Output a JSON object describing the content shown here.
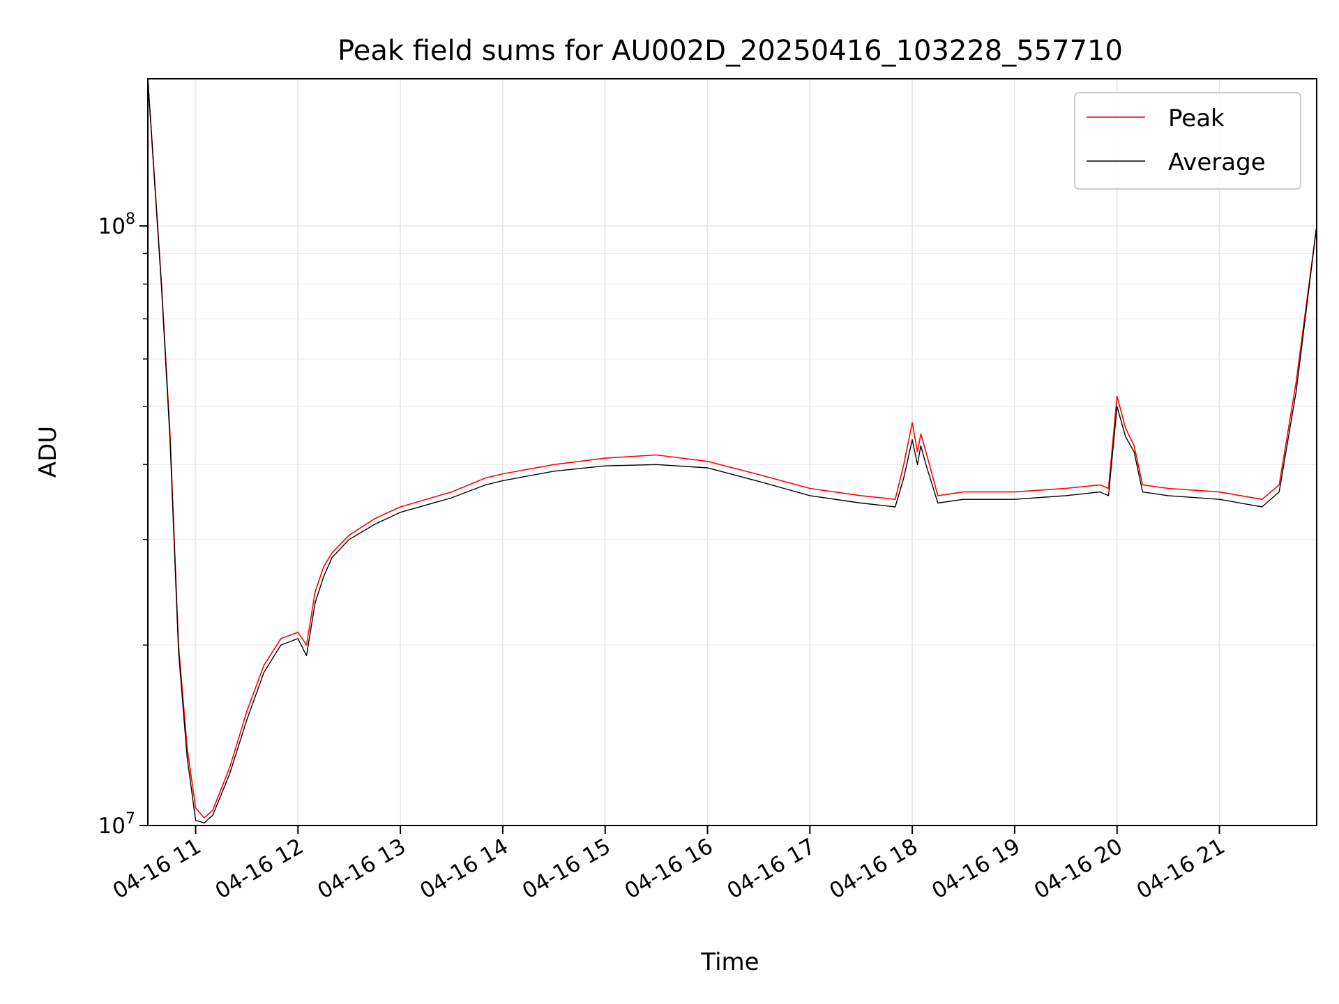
{
  "chart_data": {
    "type": "line",
    "title": "Peak field sums for AU002D_20250416_103228_557710",
    "xlabel": "Time",
    "ylabel": "ADU",
    "yscale": "log",
    "ylim": [
      10000000,
      176000000
    ],
    "xlim": [
      "2025-04-16 10:32",
      "2025-04-16 21:57"
    ],
    "x_ticks": [
      "2025-04-16 11:00",
      "2025-04-16 12:00",
      "2025-04-16 13:00",
      "2025-04-16 14:00",
      "2025-04-16 15:00",
      "2025-04-16 16:00",
      "2025-04-16 17:00",
      "2025-04-16 18:00",
      "2025-04-16 19:00",
      "2025-04-16 20:00",
      "2025-04-16 21:00"
    ],
    "x_tick_labels": [
      "04-16 11",
      "04-16 12",
      "04-16 13",
      "04-16 14",
      "04-16 15",
      "04-16 16",
      "04-16 17",
      "04-16 18",
      "04-16 19",
      "04-16 20",
      "04-16 21"
    ],
    "y_ticks": [
      10000000,
      100000000
    ],
    "y_tick_labels": [
      {
        "base": "10",
        "exp": "7"
      },
      {
        "base": "10",
        "exp": "8"
      }
    ],
    "grid": true,
    "legend_position": "top-right",
    "x": [
      "2025-04-16 10:32",
      "2025-04-16 10:40",
      "2025-04-16 10:45",
      "2025-04-16 10:50",
      "2025-04-16 10:55",
      "2025-04-16 11:00",
      "2025-04-16 11:05",
      "2025-04-16 11:10",
      "2025-04-16 11:20",
      "2025-04-16 11:30",
      "2025-04-16 11:40",
      "2025-04-16 11:50",
      "2025-04-16 12:00",
      "2025-04-16 12:05",
      "2025-04-16 12:10",
      "2025-04-16 12:15",
      "2025-04-16 12:20",
      "2025-04-16 12:30",
      "2025-04-16 12:45",
      "2025-04-16 13:00",
      "2025-04-16 13:30",
      "2025-04-16 13:50",
      "2025-04-16 14:00",
      "2025-04-16 14:30",
      "2025-04-16 15:00",
      "2025-04-16 15:30",
      "2025-04-16 16:00",
      "2025-04-16 16:30",
      "2025-04-16 17:00",
      "2025-04-16 17:30",
      "2025-04-16 17:50",
      "2025-04-16 17:55",
      "2025-04-16 18:00",
      "2025-04-16 18:03",
      "2025-04-16 18:05",
      "2025-04-16 18:08",
      "2025-04-16 18:15",
      "2025-04-16 18:30",
      "2025-04-16 19:00",
      "2025-04-16 19:30",
      "2025-04-16 19:50",
      "2025-04-16 19:55",
      "2025-04-16 20:00",
      "2025-04-16 20:05",
      "2025-04-16 20:10",
      "2025-04-16 20:15",
      "2025-04-16 20:30",
      "2025-04-16 21:00",
      "2025-04-16 21:25",
      "2025-04-16 21:35",
      "2025-04-16 21:45",
      "2025-04-16 21:57"
    ],
    "series": [
      {
        "name": "Peak",
        "color": "#ff0000",
        "values": [
          176000000,
          80000000,
          45000000,
          20000000,
          13500000,
          10700000,
          10300000,
          10600000,
          12500000,
          15500000,
          18500000,
          20500000,
          21000000,
          20000000,
          24500000,
          27000000,
          28500000,
          30500000,
          32500000,
          34000000,
          36000000,
          38000000,
          38600000,
          40000000,
          41000000,
          41500000,
          40500000,
          38500000,
          36500000,
          35500000,
          35000000,
          40000000,
          47000000,
          42000000,
          45000000,
          42000000,
          35500000,
          36000000,
          36000000,
          36500000,
          37000000,
          36500000,
          52000000,
          46000000,
          43000000,
          37000000,
          36500000,
          36000000,
          35000000,
          37000000,
          55000000,
          100000000
        ]
      },
      {
        "name": "Average",
        "color": "#000000",
        "values": [
          176000000,
          79000000,
          44000000,
          19500000,
          13000000,
          10200000,
          10100000,
          10400000,
          12200000,
          15000000,
          18000000,
          20000000,
          20500000,
          19200000,
          23500000,
          26000000,
          28000000,
          30000000,
          31800000,
          33300000,
          35200000,
          37000000,
          37600000,
          39000000,
          39800000,
          40000000,
          39500000,
          37500000,
          35500000,
          34500000,
          34000000,
          38000000,
          44000000,
          40000000,
          43000000,
          40000000,
          34500000,
          35000000,
          35000000,
          35500000,
          36000000,
          35500000,
          50000000,
          44500000,
          42000000,
          36000000,
          35500000,
          35000000,
          34000000,
          36000000,
          53000000,
          100000000
        ]
      }
    ],
    "annotations": []
  }
}
